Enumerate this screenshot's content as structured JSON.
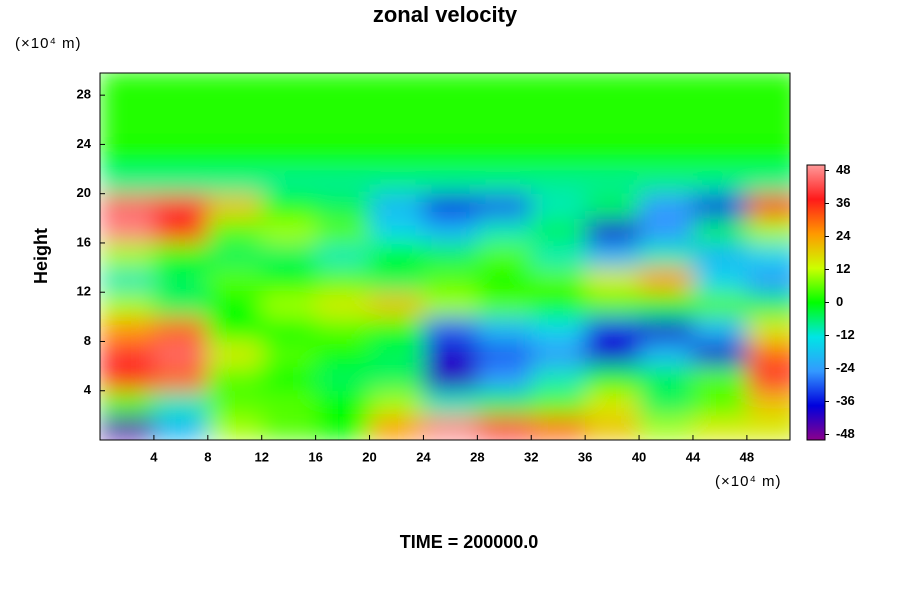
{
  "chart_data": {
    "type": "heatmap",
    "title": "zonal velocity",
    "y_label": "Height",
    "y_unit": "(×10⁴ m)",
    "x_unit": "(×10⁴ m)",
    "footer": "TIME = 200000.0",
    "x": [
      2,
      6,
      10,
      14,
      18,
      22,
      26,
      30,
      34,
      38,
      42,
      46,
      50
    ],
    "y": [
      1,
      3,
      5,
      7,
      9,
      11,
      13,
      15,
      17,
      19,
      21,
      23,
      25,
      27,
      29
    ],
    "z": [
      [
        -45,
        -20,
        10,
        5,
        0,
        25,
        48,
        40,
        30,
        20,
        10,
        15,
        15
      ],
      [
        5,
        -10,
        5,
        5,
        0,
        10,
        -10,
        -5,
        5,
        15,
        -5,
        5,
        20
      ],
      [
        35,
        30,
        5,
        0,
        -5,
        -5,
        -42,
        -25,
        -10,
        0,
        -5,
        5,
        40
      ],
      [
        40,
        45,
        15,
        5,
        0,
        -5,
        -40,
        -30,
        -25,
        -40,
        -20,
        -40,
        30
      ],
      [
        25,
        30,
        0,
        0,
        5,
        0,
        -30,
        -20,
        -15,
        -35,
        -40,
        -20,
        15
      ],
      [
        10,
        -5,
        0,
        10,
        15,
        20,
        10,
        5,
        0,
        5,
        0,
        5,
        -5
      ],
      [
        -10,
        -5,
        5,
        0,
        5,
        -5,
        5,
        0,
        5,
        15,
        25,
        -15,
        -25
      ],
      [
        10,
        0,
        -5,
        -5,
        -10,
        0,
        -5,
        5,
        -10,
        -20,
        -10,
        -20,
        -15
      ],
      [
        48,
        35,
        5,
        10,
        5,
        -15,
        -20,
        -10,
        -5,
        -40,
        -25,
        -5,
        10
      ],
      [
        45,
        40,
        20,
        0,
        -5,
        -20,
        -35,
        -30,
        -10,
        -5,
        -25,
        -35,
        35
      ],
      [
        -8,
        -8,
        -8,
        -8,
        -8,
        -8,
        -8,
        -8,
        -8,
        -8,
        -8,
        -8,
        -8
      ],
      [
        1,
        1,
        1,
        1,
        1,
        1,
        1,
        1,
        1,
        1,
        1,
        1,
        1
      ],
      [
        2,
        2,
        2,
        2,
        2,
        2,
        2,
        2,
        2,
        2,
        2,
        2,
        2
      ],
      [
        2,
        2,
        2,
        2,
        2,
        2,
        2,
        2,
        2,
        2,
        2,
        2,
        2
      ],
      [
        2,
        2,
        2,
        2,
        2,
        2,
        2,
        2,
        2,
        2,
        2,
        2,
        2
      ]
    ],
    "xlim": [
      0,
      51.2
    ],
    "ylim": [
      0,
      29.8
    ],
    "xticks": [
      4,
      8,
      12,
      16,
      20,
      24,
      28,
      32,
      36,
      40,
      44,
      48
    ],
    "yticks": [
      4,
      8,
      12,
      16,
      20,
      24,
      28
    ],
    "clim": [
      -50,
      50
    ],
    "cticks": [
      -48,
      -36,
      -24,
      -12,
      0,
      12,
      24,
      36,
      48
    ],
    "colormap": [
      "#8b008b",
      "#0000dd",
      "#3399ff",
      "#00e5e5",
      "#00ff00",
      "#ccff00",
      "#ff9900",
      "#ff1a1a",
      "#ff9999"
    ]
  }
}
